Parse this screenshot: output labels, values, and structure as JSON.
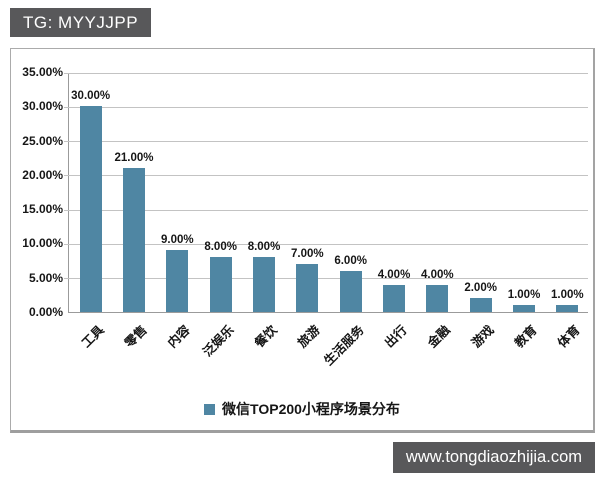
{
  "tags": {
    "top": "TG: MYYJJPP",
    "bottom": "www.tongdiaozhijia.com"
  },
  "colors": {
    "bar": "#4f86a3",
    "tag_background": "#58585a",
    "tag_text": "#ffffff",
    "gridline": "#c3c3c3"
  },
  "chart_data": {
    "type": "bar",
    "title": "",
    "legend": "微信TOP200小程序场景分布",
    "legend_position": "bottom",
    "categories": [
      "工具",
      "零售",
      "内容",
      "泛娱乐",
      "餐饮",
      "旅游",
      "生活服务",
      "出行",
      "金融",
      "游戏",
      "教育",
      "体育"
    ],
    "values": [
      30,
      21,
      9,
      8,
      8,
      7,
      6,
      4,
      4,
      2,
      1,
      1
    ],
    "data_labels": [
      "30.00%",
      "21.00%",
      "9.00%",
      "8.00%",
      "8.00%",
      "7.00%",
      "6.00%",
      "4.00%",
      "4.00%",
      "2.00%",
      "1.00%",
      "1.00%"
    ],
    "y_ticks": [
      "35.00%",
      "30.00%",
      "25.00%",
      "20.00%",
      "15.00%",
      "10.00%",
      "5.00%",
      "0.00%"
    ],
    "ylim": [
      0,
      35
    ],
    "grid": true,
    "xlabel": "",
    "ylabel": ""
  }
}
